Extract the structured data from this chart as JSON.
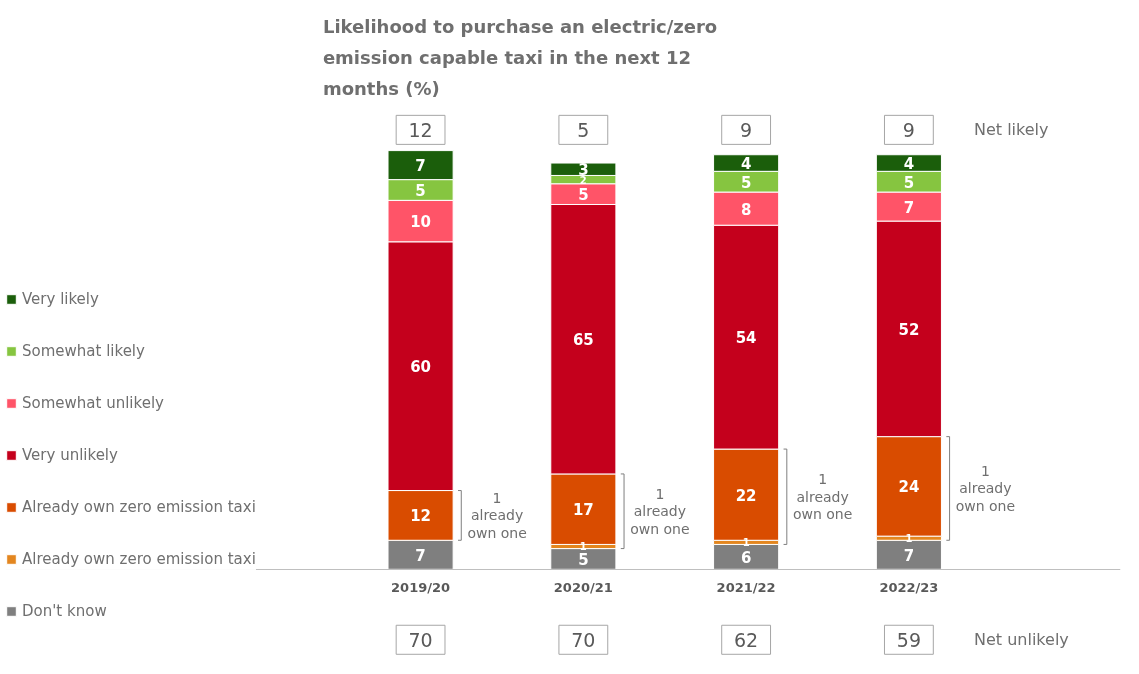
{
  "chart_data": {
    "type": "bar",
    "stacked": true,
    "title": "Likelihood to purchase an electric/zero emission capable taxi in the next 12 months (%)",
    "categories": [
      "2019/20",
      "2020/21",
      "2021/22",
      "2022/23"
    ],
    "series": [
      {
        "name": "Don't know",
        "color": "#7f7f7f",
        "values": [
          7,
          5,
          6,
          7
        ]
      },
      {
        "name": "Already own zero emission taxi",
        "color": "#e3861f",
        "values": [
          null,
          1,
          1,
          1
        ]
      },
      {
        "name": "Already own zero emission taxi",
        "color": "#d94c00",
        "values": [
          12,
          17,
          22,
          24
        ]
      },
      {
        "name": "Very unlikely",
        "color": "#c4001c",
        "values": [
          60,
          65,
          54,
          52
        ]
      },
      {
        "name": "Somewhat unlikely",
        "color": "#ff5468",
        "values": [
          10,
          5,
          8,
          7
        ]
      },
      {
        "name": "Somewhat likely",
        "color": "#86c540",
        "values": [
          5,
          2,
          5,
          5
        ]
      },
      {
        "name": "Very likely",
        "color": "#1b5e0b",
        "values": [
          7,
          3,
          4,
          4
        ]
      }
    ],
    "data_labels": true,
    "legend": "left",
    "grid": false,
    "annotations": [
      "Net likely",
      "12",
      "5",
      "9",
      "9",
      "Net unlikely",
      "70",
      "70",
      "62",
      "59",
      "1 already own one",
      "1 already own one",
      "1 already own one",
      "1 already own one"
    ]
  }
}
